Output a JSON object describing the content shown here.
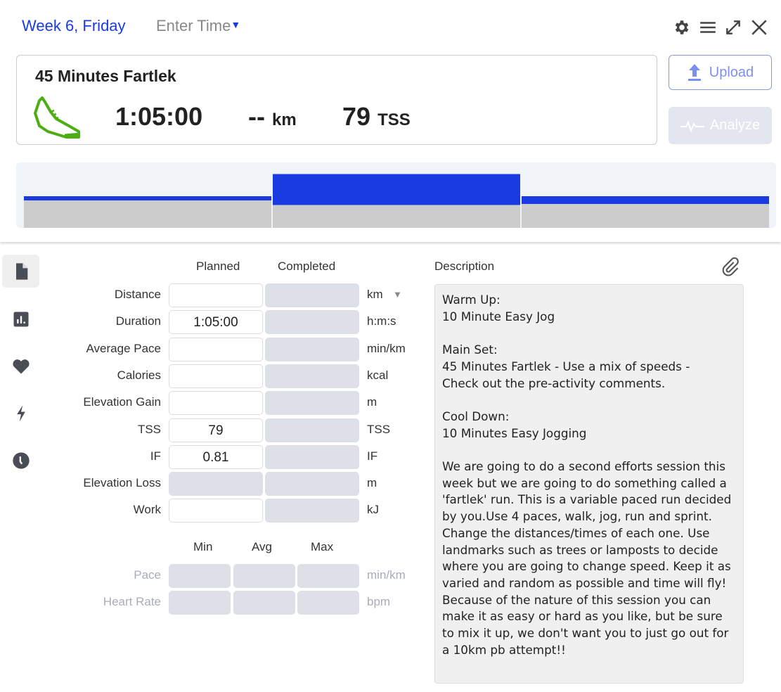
{
  "header": {
    "week_label": "Week 6, Friday",
    "enter_time": "Enter Time",
    "icons": [
      "gear-icon",
      "menu-icon",
      "expand-icon",
      "close-icon"
    ]
  },
  "workout": {
    "title": "45 Minutes Fartlek",
    "sport_icon": "running-shoe-icon",
    "duration": "1:05:00",
    "distance": "--",
    "distance_unit": "km",
    "tss": "79",
    "tss_unit": "TSS"
  },
  "actions": {
    "upload": "Upload",
    "analyze": "Analyze"
  },
  "structure": {
    "colors": {
      "target": "#1a3be0",
      "base": "#cccccc",
      "background": "#f0f3f8"
    },
    "segments": [
      {
        "name": "Warm Up",
        "intensity": 0.5
      },
      {
        "name": "Main Set",
        "intensity": 0.85
      },
      {
        "name": "Cool Down",
        "intensity": 0.5
      }
    ]
  },
  "sidebar": {
    "items": [
      {
        "icon": "document-icon",
        "active": true
      },
      {
        "icon": "bar-chart-icon"
      },
      {
        "icon": "heart-icon"
      },
      {
        "icon": "lightning-icon"
      },
      {
        "icon": "clock-icon"
      }
    ]
  },
  "form": {
    "planned_header": "Planned",
    "completed_header": "Completed",
    "rows": [
      {
        "label": "Distance",
        "planned": "",
        "completed": "",
        "unit": "km",
        "planned_editable": true
      },
      {
        "label": "Duration",
        "planned": "1:05:00",
        "completed": "",
        "unit": "h:m:s",
        "planned_editable": true
      },
      {
        "label": "Average Pace",
        "planned": "",
        "completed": "",
        "unit": "min/km",
        "planned_editable": true
      },
      {
        "label": "Calories",
        "planned": "",
        "completed": "",
        "unit": "kcal",
        "planned_editable": true
      },
      {
        "label": "Elevation Gain",
        "planned": "",
        "completed": "",
        "unit": "m",
        "planned_editable": true
      },
      {
        "label": "TSS",
        "planned": "79",
        "completed": "",
        "unit": "TSS",
        "planned_editable": true
      },
      {
        "label": "IF",
        "planned": "0.81",
        "completed": "",
        "unit": "IF",
        "planned_editable": true
      },
      {
        "label": "Elevation Loss",
        "planned": "",
        "completed": "",
        "unit": "m",
        "planned_editable": false
      },
      {
        "label": "Work",
        "planned": "",
        "completed": "",
        "unit": "kJ",
        "planned_editable": true
      }
    ],
    "range_headers": {
      "min": "Min",
      "avg": "Avg",
      "max": "Max"
    },
    "range_rows": [
      {
        "label": "Pace",
        "unit": "min/km"
      },
      {
        "label": "Heart Rate",
        "unit": "bpm"
      }
    ]
  },
  "description": {
    "label": "Description",
    "text": "Warm Up:\n10 Minute Easy Jog\n\nMain Set:\n45 Minutes Fartlek - Use a mix of speeds -\nCheck out the pre-activity comments.\n\nCool Down:\n10 Minutes Easy Jogging\n\nWe are going to do a second efforts session this week but we are going to do something called a 'fartlek' run. This is a variable paced run decided by you.Use 4 paces, walk, jog, run and sprint. Change the distances/times of each one. Use landmarks such as trees or lamposts to decide where you are going to change speed. Keep it as varied and random as possible and time will fly!\nBecause of the nature of this session you can make it as easy or hard as you like, but be sure to mix it up, we don't want you to just go out for a 10km pb attempt!!"
  }
}
